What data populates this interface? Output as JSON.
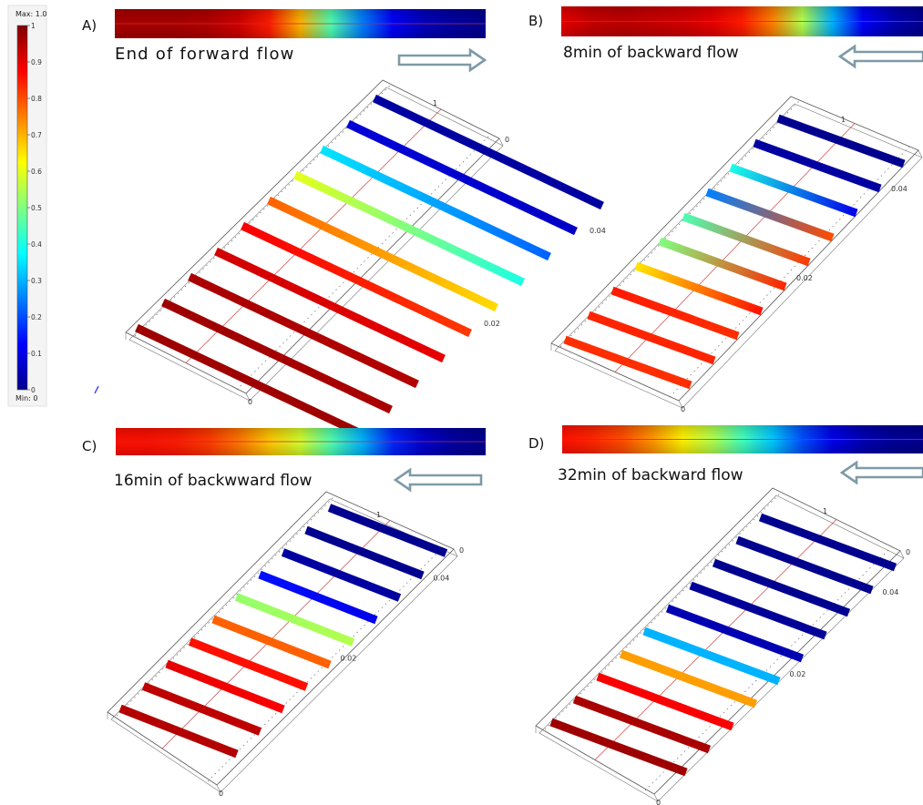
{
  "colorbar": {
    "max_label": "Max: 1.0",
    "min_label": "Min: 0",
    "ticks": [
      "1",
      "0.9",
      "0.8",
      "0.7",
      "0.6",
      "0.5",
      "0.4",
      "0.3",
      "0.2",
      "0.1",
      "0"
    ],
    "tick_values": [
      1,
      0.9,
      0.8,
      0.7,
      0.6,
      0.5,
      0.4,
      0.3,
      0.2,
      0.1,
      0
    ]
  },
  "colormap": {
    "stops": [
      {
        "v": 0.0,
        "color": "#00008f"
      },
      {
        "v": 0.125,
        "color": "#0000ff"
      },
      {
        "v": 0.375,
        "color": "#00ffff"
      },
      {
        "v": 0.5,
        "color": "#80ff80"
      },
      {
        "v": 0.625,
        "color": "#ffff00"
      },
      {
        "v": 0.875,
        "color": "#ff0000"
      },
      {
        "v": 1.0,
        "color": "#800000"
      }
    ]
  },
  "axis_labels": {
    "start": "0",
    "mid": "0.02",
    "end": "0.04",
    "top": "1",
    "side": "0"
  },
  "panels": [
    {
      "letter": "A)",
      "caption": "End of forward flow",
      "arrow": "right",
      "channel_profile": [
        0.96,
        0.96,
        0.96,
        0.95,
        0.92,
        0.85,
        0.7,
        0.45,
        0.25,
        0.12,
        0.05,
        0.02,
        0.0
      ],
      "stripes": [
        {
          "near": 0.97,
          "far": 0.97
        },
        {
          "near": 0.97,
          "far": 0.96
        },
        {
          "near": 0.96,
          "far": 0.95
        },
        {
          "near": 0.92,
          "far": 0.9
        },
        {
          "near": 0.88,
          "far": 0.82
        },
        {
          "near": 0.78,
          "far": 0.66
        },
        {
          "near": 0.6,
          "far": 0.4
        },
        {
          "near": 0.35,
          "far": 0.22
        },
        {
          "near": 0.08,
          "far": 0.06
        },
        {
          "near": 0.02,
          "far": 0.02
        }
      ]
    },
    {
      "letter": "B)",
      "caption": "8min of backward flow",
      "arrow": "left",
      "channel_profile": [
        0.9,
        0.93,
        0.94,
        0.93,
        0.92,
        0.9,
        0.85,
        0.75,
        0.55,
        0.3,
        0.12,
        0.04,
        0.0
      ],
      "stripes": [
        {
          "near": 0.83,
          "far": 0.83
        },
        {
          "near": 0.84,
          "far": 0.84
        },
        {
          "near": 0.85,
          "far": 0.83
        },
        {
          "near": 0.65,
          "far": 0.86
        },
        {
          "near": 0.5,
          "far": 0.84
        },
        {
          "near": 0.45,
          "far": 0.82
        },
        {
          "near": 0.25,
          "far": 0.8
        },
        {
          "near": 0.4,
          "far": 0.1
        },
        {
          "near": 0.02,
          "far": 0.02
        },
        {
          "near": 0.0,
          "far": 0.0
        }
      ]
    },
    {
      "letter": "C)",
      "caption": "16min of backwward flow",
      "arrow": "left",
      "channel_profile": [
        0.86,
        0.86,
        0.85,
        0.82,
        0.76,
        0.68,
        0.58,
        0.45,
        0.3,
        0.16,
        0.07,
        0.02,
        0.0
      ],
      "stripes": [
        {
          "near": 0.95,
          "far": 0.95
        },
        {
          "near": 0.94,
          "far": 0.94
        },
        {
          "near": 0.9,
          "far": 0.88
        },
        {
          "near": 0.86,
          "far": 0.86
        },
        {
          "near": 0.78,
          "far": 0.78
        },
        {
          "near": 0.52,
          "far": 0.55
        },
        {
          "near": 0.14,
          "far": 0.1
        },
        {
          "near": 0.02,
          "far": 0.02
        },
        {
          "near": 0.0,
          "far": 0.0
        },
        {
          "near": 0.0,
          "far": 0.0
        }
      ]
    },
    {
      "letter": "D)",
      "caption": "32min of backward flow",
      "arrow": "left",
      "channel_profile": [
        0.86,
        0.84,
        0.8,
        0.73,
        0.64,
        0.55,
        0.44,
        0.32,
        0.2,
        0.1,
        0.04,
        0.01,
        0.0
      ],
      "stripes": [
        {
          "near": 0.97,
          "far": 0.97
        },
        {
          "near": 0.96,
          "far": 0.96
        },
        {
          "near": 0.88,
          "far": 0.88
        },
        {
          "near": 0.72,
          "far": 0.72
        },
        {
          "near": 0.3,
          "far": 0.3
        },
        {
          "near": 0.04,
          "far": 0.04
        },
        {
          "near": 0.01,
          "far": 0.01
        },
        {
          "near": 0.0,
          "far": 0.0
        },
        {
          "near": 0.0,
          "far": 0.0
        },
        {
          "near": 0.0,
          "far": 0.0
        }
      ]
    }
  ]
}
